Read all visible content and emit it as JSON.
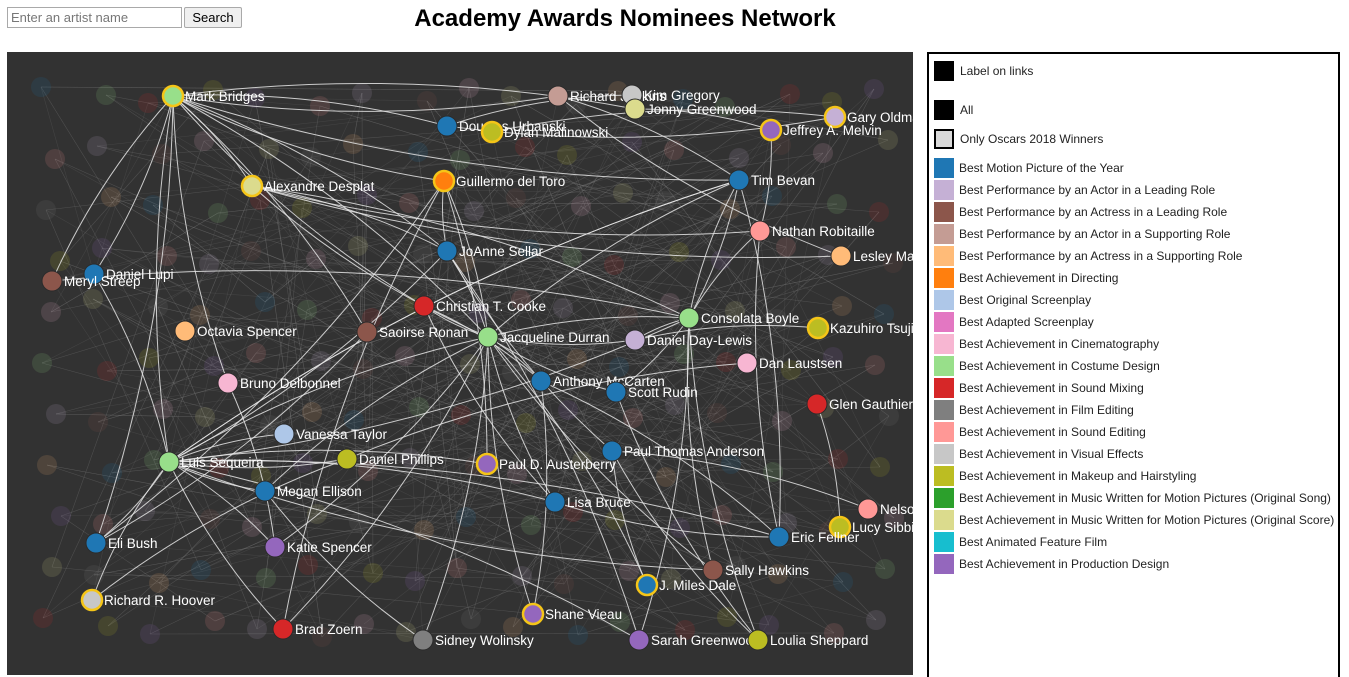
{
  "search": {
    "placeholder": "Enter an artist name",
    "button_label": "Search"
  },
  "title": "Academy Awards Nominees Network",
  "legend": {
    "label_on_links": "Label on links",
    "all": "All",
    "winners_only": "Only Oscars 2018 Winners",
    "categories": [
      {
        "label": "Best Motion Picture of the Year",
        "color": "#1f77b4"
      },
      {
        "label": "Best Performance by an Actor in a Leading Role",
        "color": "#c5b0d5"
      },
      {
        "label": "Best Performance by an Actress in a Leading Role",
        "color": "#8c564b"
      },
      {
        "label": "Best Performance by an Actor in a Supporting Role",
        "color": "#c49c94"
      },
      {
        "label": "Best Performance by an Actress in a Supporting Role",
        "color": "#ffbb78"
      },
      {
        "label": "Best Achievement in Directing",
        "color": "#ff7f0e"
      },
      {
        "label": "Best Original Screenplay",
        "color": "#aec7e8"
      },
      {
        "label": "Best Adapted Screenplay",
        "color": "#e377c2"
      },
      {
        "label": "Best Achievement in Cinematography",
        "color": "#f7b6d2"
      },
      {
        "label": "Best Achievement in Costume Design",
        "color": "#98df8a"
      },
      {
        "label": "Best Achievement in Sound Mixing",
        "color": "#d62728"
      },
      {
        "label": "Best Achievement in Film Editing",
        "color": "#7f7f7f"
      },
      {
        "label": "Best Achievement in Sound Editing",
        "color": "#ff9896"
      },
      {
        "label": "Best Achievement in Visual Effects",
        "color": "#c7c7c7"
      },
      {
        "label": "Best Achievement in Makeup and Hairstyling",
        "color": "#bcbd22"
      },
      {
        "label": "Best Achievement in Music Written for Motion Pictures (Original Song)",
        "color": "#2ca02c"
      },
      {
        "label": "Best Achievement in Music Written for Motion Pictures (Original Score)",
        "color": "#dbdb8d"
      },
      {
        "label": "Best Animated Feature Film",
        "color": "#17becf"
      },
      {
        "label": "Best Achievement in Production Design",
        "color": "#9467bd"
      }
    ]
  },
  "winner_ring_color": "#f5c518",
  "nodes": [
    {
      "label": "Mark Bridges",
      "color": "#98df8a",
      "winner": true
    },
    {
      "label": "Richard Jenkins",
      "color": "#c49c94",
      "winner": false
    },
    {
      "label": "Kim Gregory",
      "color": "#c7c7c7",
      "winner": false
    },
    {
      "label": "Jonny Greenwood",
      "color": "#dbdb8d",
      "winner": false
    },
    {
      "label": "Gary Oldman",
      "color": "#c5b0d5",
      "winner": true
    },
    {
      "label": "Douglas Urbanski",
      "color": "#1f77b4",
      "winner": false
    },
    {
      "label": "Dylan Malinowski",
      "color": "#bcbd22",
      "winner": true
    },
    {
      "label": "Jeffrey A. Melvin",
      "color": "#9467bd",
      "winner": true
    },
    {
      "label": "Alexandre Desplat",
      "color": "#dbdb8d",
      "winner": true
    },
    {
      "label": "Guillermo del Toro",
      "color": "#ff7f0e",
      "winner": true
    },
    {
      "label": "Tim Bevan",
      "color": "#1f77b4",
      "winner": false
    },
    {
      "label": "Nathan Robitaille",
      "color": "#ff9896",
      "winner": false
    },
    {
      "label": "JoAnne Sellar",
      "color": "#1f77b4",
      "winner": false
    },
    {
      "label": "Lesley Manville",
      "color": "#ffbb78",
      "winner": false
    },
    {
      "label": "Daniel Lupi",
      "color": "#1f77b4",
      "winner": false
    },
    {
      "label": "Meryl Streep",
      "color": "#8c564b",
      "winner": false
    },
    {
      "label": "Christian T. Cooke",
      "color": "#d62728",
      "winner": false
    },
    {
      "label": "Consolata Boyle",
      "color": "#98df8a",
      "winner": false
    },
    {
      "label": "Kazuhiro Tsuji",
      "color": "#bcbd22",
      "winner": true
    },
    {
      "label": "Octavia Spencer",
      "color": "#ffbb78",
      "winner": false
    },
    {
      "label": "Saoirse Ronan",
      "color": "#8c564b",
      "winner": false
    },
    {
      "label": "Jacqueline Durran",
      "color": "#98df8a",
      "winner": false
    },
    {
      "label": "Daniel Day-Lewis",
      "color": "#c5b0d5",
      "winner": false
    },
    {
      "label": "Dan Laustsen",
      "color": "#f7b6d2",
      "winner": false
    },
    {
      "label": "Bruno Delbonnel",
      "color": "#f7b6d2",
      "winner": false
    },
    {
      "label": "Anthony McCarten",
      "color": "#1f77b4",
      "winner": false
    },
    {
      "label": "Scott Rudin",
      "color": "#1f77b4",
      "winner": false
    },
    {
      "label": "Glen Gauthier",
      "color": "#d62728",
      "winner": false
    },
    {
      "label": "Vanessa Taylor",
      "color": "#aec7e8",
      "winner": false
    },
    {
      "label": "Luis Sequeira",
      "color": "#98df8a",
      "winner": false
    },
    {
      "label": "Daniel Phillips",
      "color": "#bcbd22",
      "winner": false
    },
    {
      "label": "Paul D. Austerberry",
      "color": "#9467bd",
      "winner": true
    },
    {
      "label": "Paul Thomas Anderson",
      "color": "#1f77b4",
      "winner": false
    },
    {
      "label": "Megan Ellison",
      "color": "#1f77b4",
      "winner": false
    },
    {
      "label": "Lisa Bruce",
      "color": "#1f77b4",
      "winner": false
    },
    {
      "label": "Nelson Ferreira",
      "color": "#ff9896",
      "winner": false
    },
    {
      "label": "Eli Bush",
      "color": "#1f77b4",
      "winner": false
    },
    {
      "label": "Katie Spencer",
      "color": "#9467bd",
      "winner": false
    },
    {
      "label": "Lucy Sibbick",
      "color": "#bcbd22",
      "winner": true
    },
    {
      "label": "Eric Fellner",
      "color": "#1f77b4",
      "winner": false
    },
    {
      "label": "Sally Hawkins",
      "color": "#8c564b",
      "winner": false
    },
    {
      "label": "J. Miles Dale",
      "color": "#1f77b4",
      "winner": true
    },
    {
      "label": "Richard R. Hoover",
      "color": "#c7c7c7",
      "winner": true
    },
    {
      "label": "Shane Vieau",
      "color": "#9467bd",
      "winner": true
    },
    {
      "label": "Brad Zoern",
      "color": "#d62728",
      "winner": false
    },
    {
      "label": "Sidney Wolinsky",
      "color": "#7f7f7f",
      "winner": false
    },
    {
      "label": "Sarah Greenwood",
      "color": "#9467bd",
      "winner": false
    },
    {
      "label": "Loulia Sheppard",
      "color": "#bcbd22",
      "winner": false
    }
  ]
}
